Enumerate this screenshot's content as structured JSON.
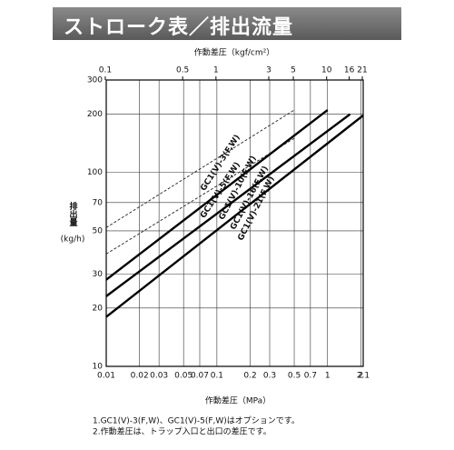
{
  "header": {
    "title": "ストローク表／排出流量"
  },
  "chart_data": {
    "type": "line",
    "log_x": true,
    "log_y": true,
    "grid": true,
    "x_label": "作動差圧（MPa）",
    "x2_label": "作動差圧（kgf/cm²）",
    "y_label": "排出量",
    "y_unit": "(kg/h)",
    "xlim": [
      0.01,
      2.1
    ],
    "xticks": [
      0.01,
      0.02,
      0.03,
      0.05,
      0.07,
      0.1,
      0.2,
      0.3,
      0.5,
      0.7,
      1,
      2,
      2.1
    ],
    "x2lim": [
      0.102,
      21.4
    ],
    "x2ticks": [
      0.1,
      0.5,
      1,
      3,
      5,
      10,
      16,
      21
    ],
    "ylim": [
      10,
      300
    ],
    "yticks": [
      10,
      20,
      30,
      50,
      70,
      100,
      200,
      300
    ],
    "series": [
      {
        "name": "GC1(V)-3(F,W)",
        "color": "#222222",
        "dashed": true,
        "x": [
          0.01,
          0.5
        ],
        "values": [
          52,
          210
        ]
      },
      {
        "name": "GC1(V)-5(F,W)",
        "color": "#222222",
        "dashed": true,
        "x": [
          0.01,
          0.5
        ],
        "values": [
          38,
          150
        ]
      },
      {
        "name": "GC1(V)-10(F,W)",
        "color": "#000000",
        "dashed": false,
        "x": [
          0.01,
          1
        ],
        "values": [
          28,
          210
        ]
      },
      {
        "name": "GC1(V)-16(F,W)",
        "color": "#000000",
        "dashed": false,
        "x": [
          0.01,
          1.6
        ],
        "values": [
          23,
          200
        ]
      },
      {
        "name": "GC1(V)-21(F,W)",
        "color": "#000000",
        "dashed": false,
        "x": [
          0.01,
          2.1
        ],
        "values": [
          18,
          197
        ]
      }
    ]
  },
  "notes": [
    "1.GC1(V)-3(F,W)、GC1(V)-5(F,W)はオプションです。",
    "2.作動差圧は、トラップ入口と出口の差圧です。"
  ]
}
